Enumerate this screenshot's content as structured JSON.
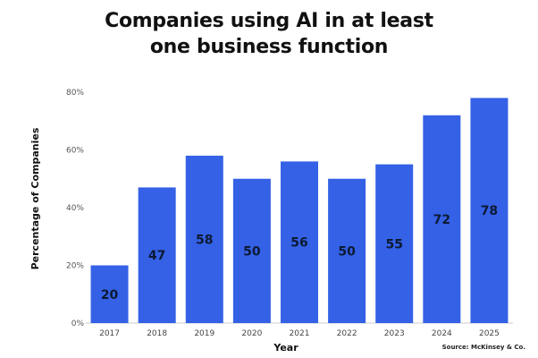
{
  "chart_data": {
    "type": "bar",
    "title_lines": [
      "Companies using AI in at least",
      "one business function"
    ],
    "xlabel": "Year",
    "ylabel": "Percentage of Companies",
    "categories": [
      "2017",
      "2018",
      "2019",
      "2020",
      "2021",
      "2022",
      "2023",
      "2024",
      "2025"
    ],
    "values": [
      20,
      47,
      58,
      50,
      56,
      50,
      55,
      72,
      78
    ],
    "data_labels": [
      "20",
      "47",
      "58",
      "50",
      "56",
      "50",
      "55",
      "72",
      "78"
    ],
    "ylim": [
      0,
      80
    ],
    "y_ticks": [
      0,
      20,
      40,
      60,
      80
    ],
    "y_tick_labels": [
      "0%",
      "20%",
      "40%",
      "60%",
      "80%"
    ],
    "grid": false,
    "legend": "none",
    "bar_color": "#3461e6",
    "label_color": "#0d1a33",
    "source": "Source: McKinsey & Co."
  }
}
